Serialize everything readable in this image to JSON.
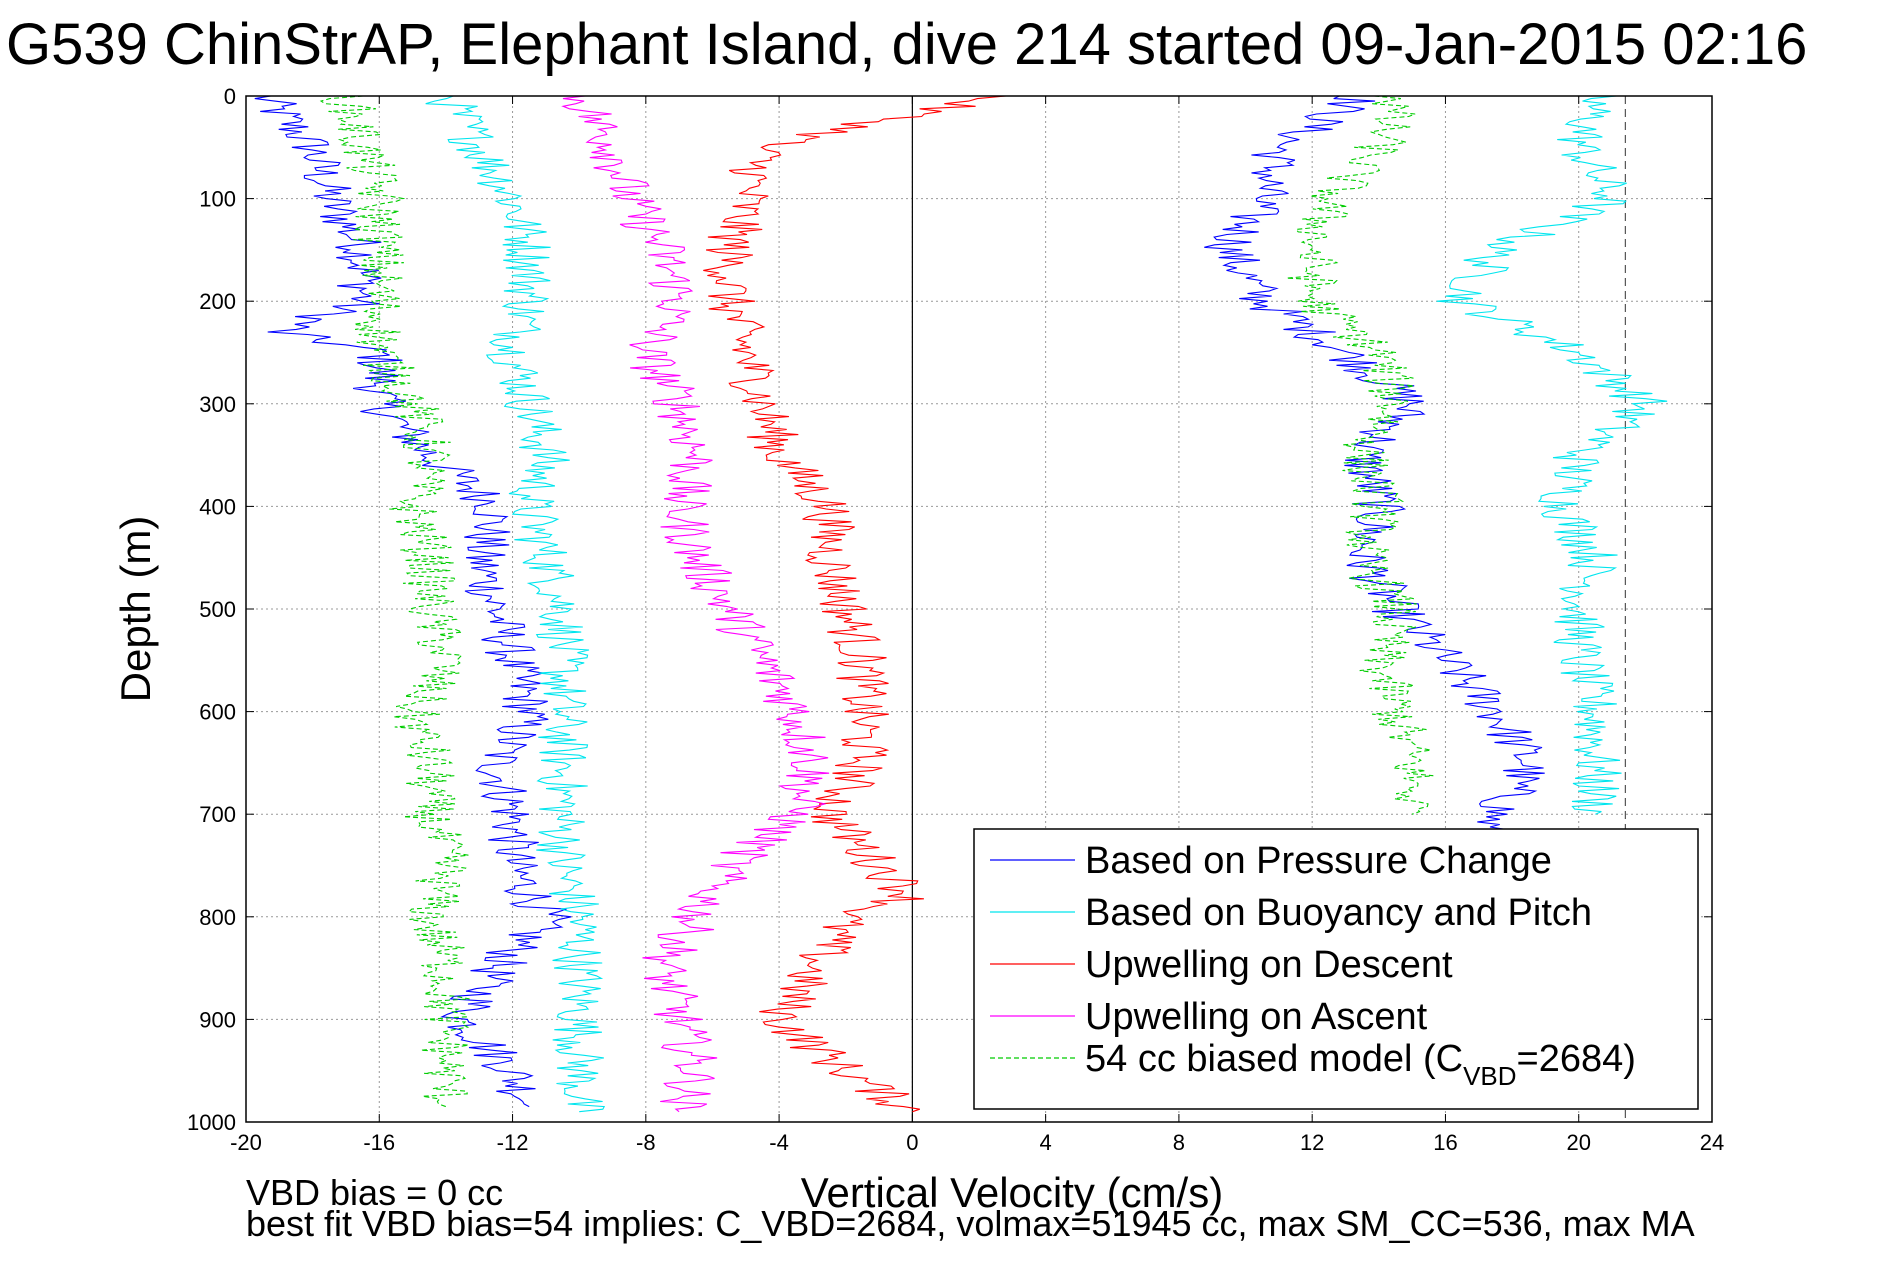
{
  "chart_data": {
    "type": "line",
    "title": "G539 ChinStrAP, Elephant Island, dive 214 started 09-Jan-2015 02:16",
    "xlabel": "Vertical Velocity (cm/s)",
    "ylabel": "Depth (m)",
    "xlim": [
      -20,
      24
    ],
    "ylim": [
      0,
      1000
    ],
    "y_reversed": true,
    "x_ticks": [
      -20,
      -16,
      -12,
      -8,
      -4,
      0,
      4,
      8,
      12,
      16,
      20,
      24
    ],
    "y_ticks": [
      0,
      100,
      200,
      300,
      400,
      500,
      600,
      700,
      800,
      900,
      1000
    ],
    "grid": true,
    "legend_position": "bottom-right",
    "reference_lines": [
      {
        "x": 0,
        "style": "solid",
        "color": "#000000"
      },
      {
        "x": 21.4,
        "style": "dashed",
        "color": "#555555"
      }
    ],
    "series": [
      {
        "name": "Based on Pressure Change",
        "color": "#0000ff",
        "dash": "solid",
        "legend_main": "Based on Pressure Change",
        "segments": [
          {
            "depth": [
              0,
              50,
              100,
              150,
              200,
              230,
              250,
              300,
              350,
              400,
              450,
              500,
              550,
              600,
              650,
              700,
              750,
              800,
              850,
              900,
              950,
              985
            ],
            "vel": [
              -19.5,
              -18,
              -17.5,
              -16.5,
              -16.5,
              -19,
              -16,
              -16,
              -14.5,
              -12.5,
              -13,
              -12.5,
              -12,
              -11.5,
              -12.5,
              -12,
              -12,
              -11,
              -12.5,
              -13.5,
              -12,
              -11.5
            ]
          },
          {
            "depth": [
              0,
              50,
              100,
              150,
              200,
              250,
              300,
              350,
              400,
              450,
              500,
              550,
              600,
              650,
              700,
              720
            ],
            "vel": [
              13.5,
              11,
              10.5,
              9.5,
              10.5,
              13,
              15,
              13.5,
              14,
              13.5,
              14.5,
              16,
              17.5,
              18.5,
              17.5,
              17
            ]
          }
        ]
      },
      {
        "name": "Based on Buoyancy and Pitch",
        "color": "#00e5ee",
        "dash": "solid",
        "legend_main": "Based on Buoyancy and Pitch",
        "segments": [
          {
            "depth": [
              0,
              50,
              100,
              150,
              200,
              250,
              300,
              350,
              400,
              450,
              500,
              550,
              600,
              650,
              700,
              750,
              800,
              850,
              900,
              950,
              990
            ],
            "vel": [
              -14,
              -13,
              -12,
              -11.5,
              -11.5,
              -12,
              -11.5,
              -11,
              -11.5,
              -11,
              -10.5,
              -10.5,
              -10.5,
              -10.5,
              -10.5,
              -10.5,
              -10,
              -10,
              -10,
              -10,
              -10
            ]
          },
          {
            "depth": [
              0,
              50,
              100,
              150,
              200,
              250,
              300,
              350,
              400,
              450,
              500,
              550,
              600,
              650,
              700
            ],
            "vel": [
              20.5,
              20,
              21,
              17.5,
              16.5,
              20,
              22,
              20,
              19.5,
              20.5,
              20,
              20,
              20.5,
              20.5,
              20.5
            ]
          }
        ]
      },
      {
        "name": "Upwelling on Descent",
        "color": "#ff0000",
        "dash": "solid",
        "legend_main": "Upwelling on Descent",
        "segments": [
          {
            "depth": [
              0,
              50,
              100,
              150,
              200,
              250,
              300,
              350,
              400,
              450,
              500,
              550,
              600,
              650,
              700,
              750,
              780,
              800,
              850,
              900,
              950,
              990
            ],
            "vel": [
              2.5,
              -4.5,
              -5,
              -5.5,
              -5.5,
              -5,
              -4.5,
              -4,
              -2.5,
              -2.5,
              -2,
              -1.5,
              -1.5,
              -1.5,
              -2.5,
              -1,
              0,
              -2,
              -3,
              -4,
              -2,
              0
            ]
          }
        ]
      },
      {
        "name": "Upwelling on Ascent",
        "color": "#ff00ff",
        "dash": "solid",
        "legend_main": "Upwelling on Ascent",
        "segments": [
          {
            "depth": [
              0,
              50,
              100,
              150,
              200,
              250,
              300,
              350,
              400,
              450,
              500,
              550,
              600,
              650,
              700,
              750,
              800,
              850,
              900,
              950,
              990
            ],
            "vel": [
              -10,
              -9,
              -8.5,
              -7.5,
              -7,
              -8,
              -7,
              -6.5,
              -7,
              -6.5,
              -5.5,
              -4.5,
              -3.5,
              -3,
              -3.5,
              -5.5,
              -6.5,
              -7.5,
              -7,
              -6.5,
              -7
            ]
          }
        ]
      },
      {
        "name": "54 cc biased model (C_VBD=2684)",
        "color": "#00cc00",
        "dash": "dashed",
        "legend_main": "54 cc biased model (C",
        "legend_sub": "VBD",
        "legend_tail": "=2684)",
        "segments": [
          {
            "depth": [
              0,
              50,
              100,
              150,
              200,
              250,
              300,
              350,
              400,
              450,
              500,
              550,
              600,
              650,
              700,
              750,
              800,
              850,
              900,
              950,
              985
            ],
            "vel": [
              -17,
              -16.5,
              -16,
              -16,
              -16,
              -16,
              -15,
              -14.5,
              -15,
              -14.5,
              -14.5,
              -14,
              -15,
              -14.5,
              -14.5,
              -14,
              -14.5,
              -14,
              -14,
              -14,
              -14
            ]
          },
          {
            "depth": [
              0,
              50,
              100,
              150,
              200,
              250,
              300,
              350,
              400,
              450,
              500,
              550,
              600,
              650,
              700
            ],
            "vel": [
              14.5,
              14,
              12.5,
              12,
              12,
              14,
              14.5,
              13.5,
              14,
              13.5,
              14.5,
              14,
              14.5,
              15,
              15
            ]
          }
        ]
      }
    ],
    "footer_notes": [
      "VBD bias = 0 cc",
      "best fit VBD bias=54 implies: C_VBD=2684, volmax=51945 cc, max SM_CC=536, max MA"
    ]
  }
}
